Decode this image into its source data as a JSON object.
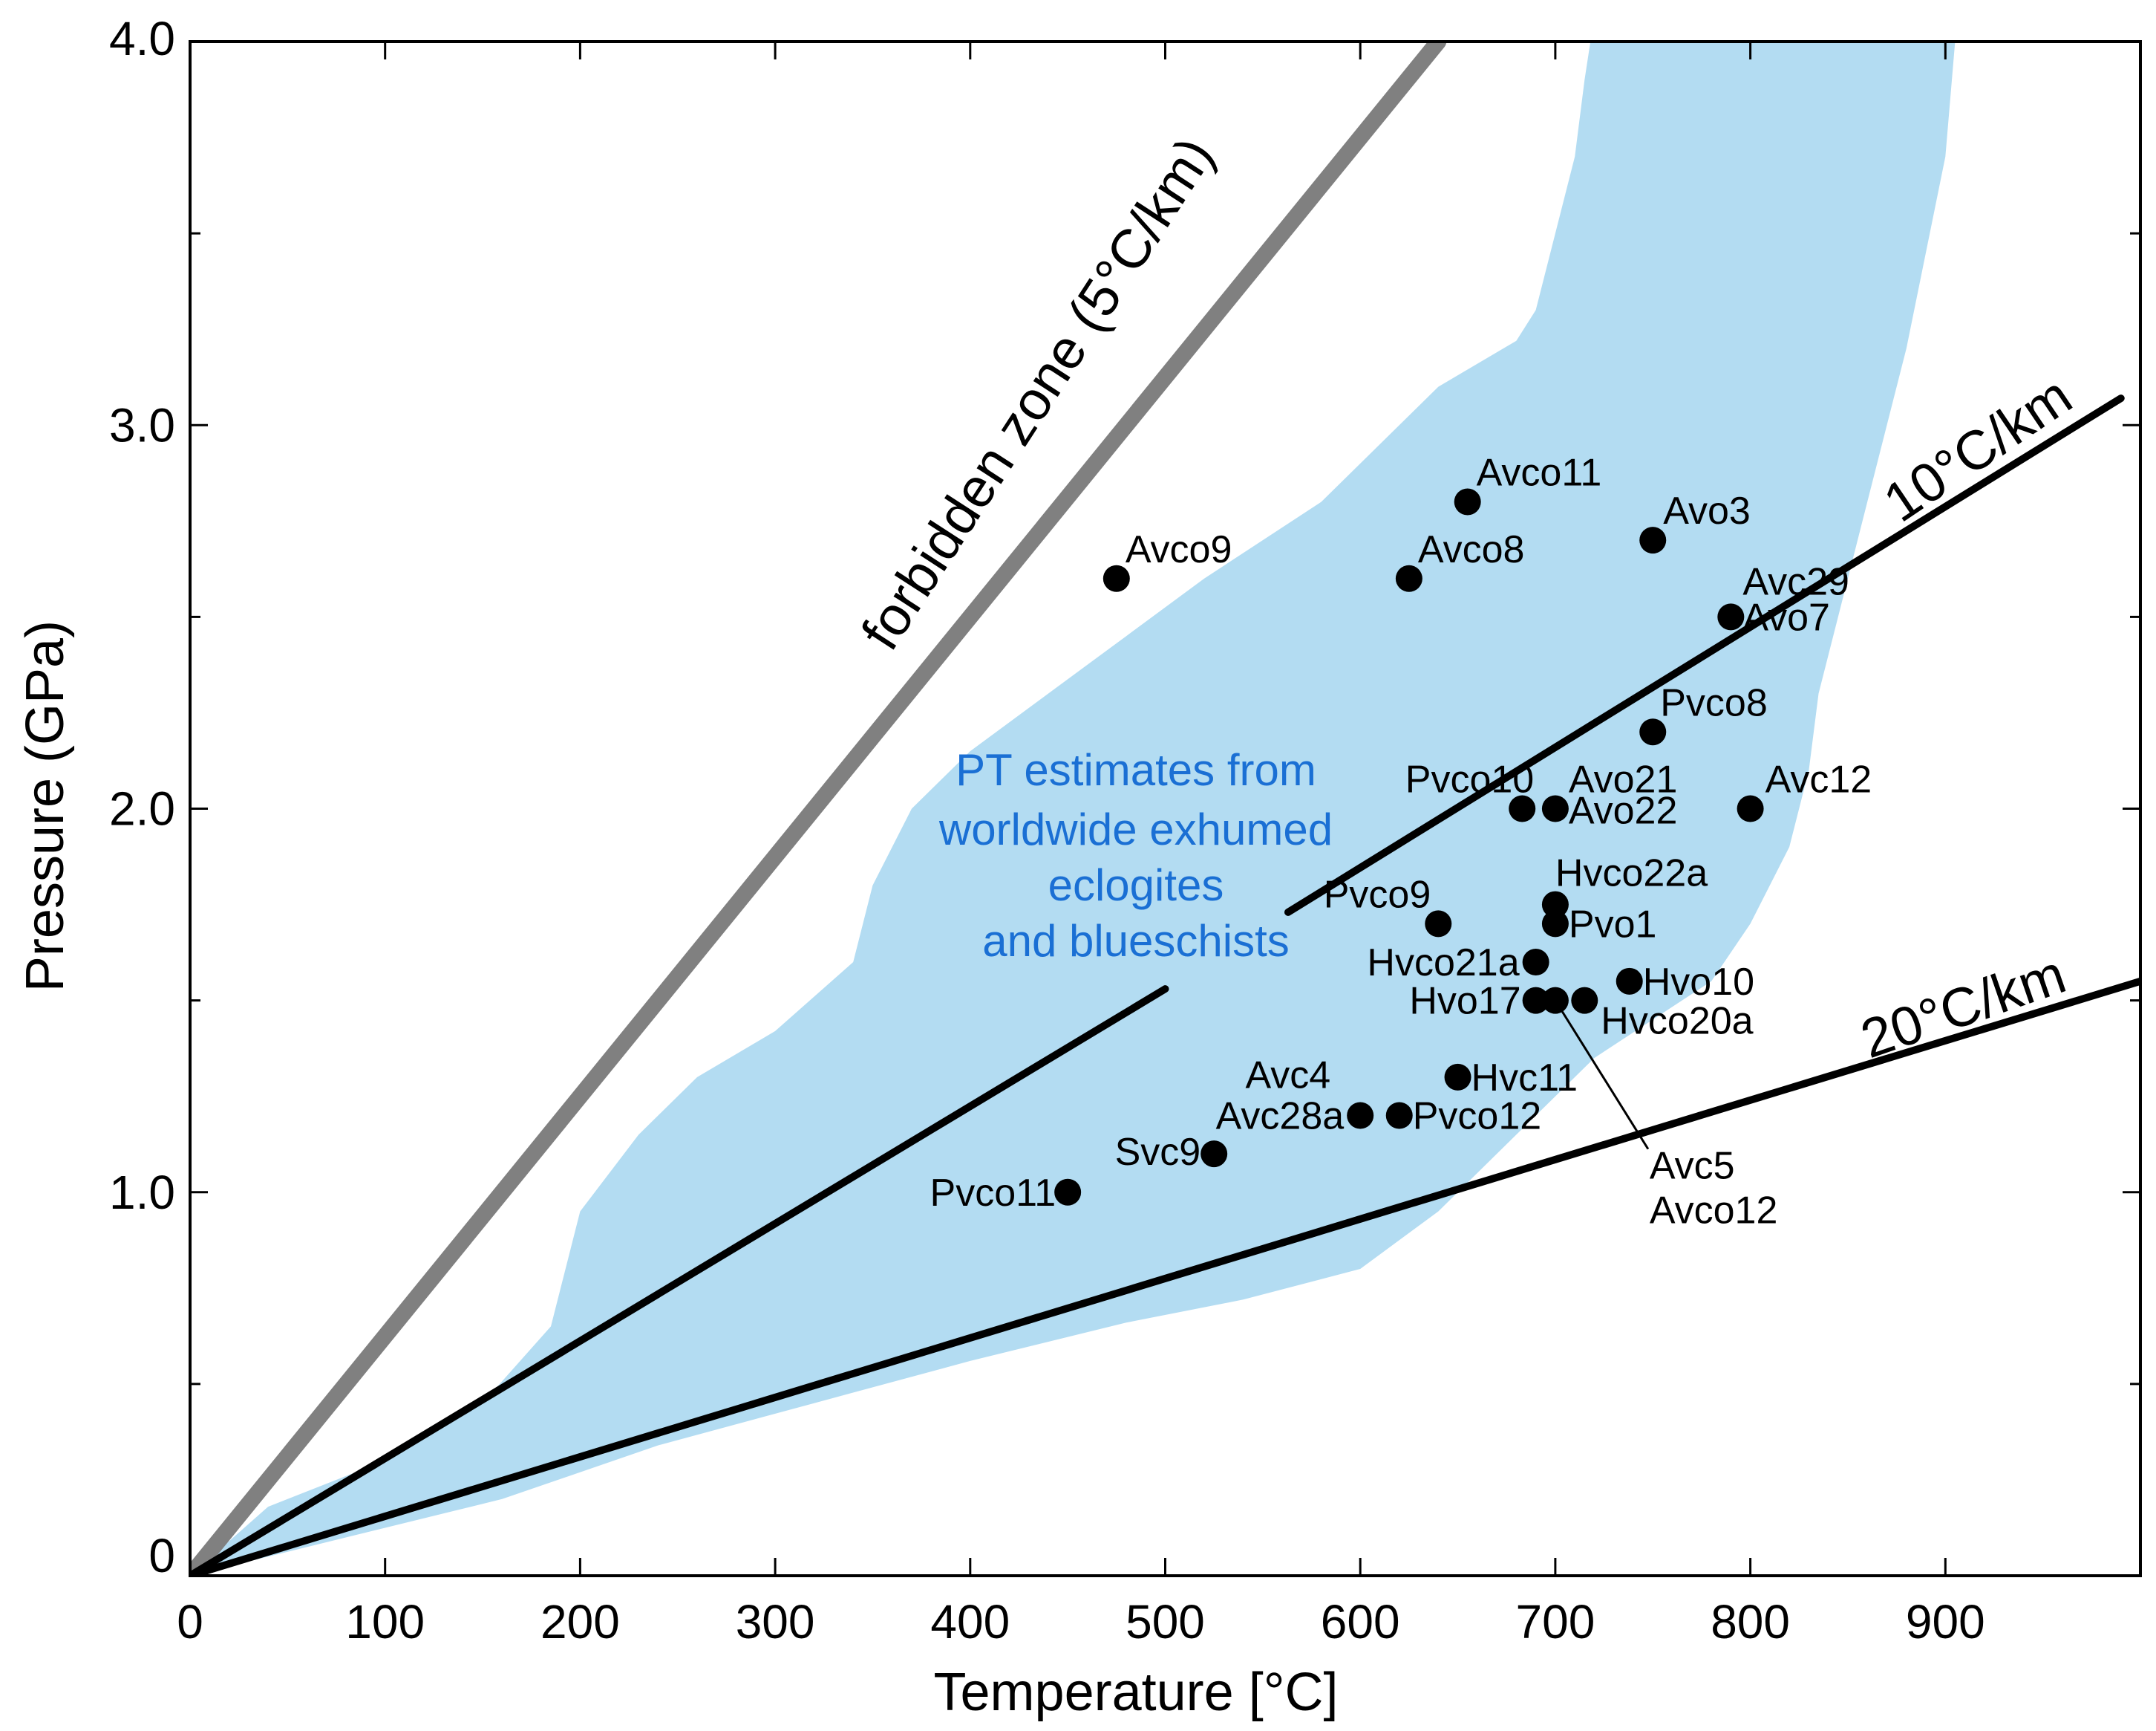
{
  "chart_data": {
    "type": "scatter",
    "xlabel": "Temperature [°C]",
    "ylabel": "Pressure (GPa)",
    "xlim": [
      0,
      1000
    ],
    "ylim": [
      0,
      4.0
    ],
    "xticks": [
      0,
      100,
      200,
      300,
      400,
      500,
      600,
      700,
      800,
      900
    ],
    "xtick_labels": [
      "0",
      "100",
      "200",
      "300",
      "400",
      "500",
      "600",
      "700",
      "800",
      "900"
    ],
    "yticks": [
      0,
      1.0,
      2.0,
      3.0,
      4.0
    ],
    "ytick_labels": [
      "0",
      "1.0",
      "2.0",
      "3.0",
      "4.0"
    ],
    "y_minor_ticks": [
      0.5,
      1.5,
      2.5,
      3.5
    ],
    "grid": false,
    "region": {
      "label_lines": [
        "PT estimates from",
        "worldwide exhumed",
        "eclogites",
        "and blueschists"
      ],
      "color": "#b3dcf2",
      "label_color": "#1a6fd4",
      "outline": [
        [
          0,
          0
        ],
        [
          40,
          0.18
        ],
        [
          100,
          0.3
        ],
        [
          150,
          0.45
        ],
        [
          185,
          0.65
        ],
        [
          200,
          0.95
        ],
        [
          230,
          1.15
        ],
        [
          260,
          1.3
        ],
        [
          300,
          1.42
        ],
        [
          340,
          1.6
        ],
        [
          350,
          1.8
        ],
        [
          370,
          2.0
        ],
        [
          400,
          2.15
        ],
        [
          440,
          2.3
        ],
        [
          480,
          2.45
        ],
        [
          520,
          2.6
        ],
        [
          580,
          2.8
        ],
        [
          640,
          3.1
        ],
        [
          680,
          3.22
        ],
        [
          690,
          3.3
        ],
        [
          700,
          3.5
        ],
        [
          710,
          3.7
        ],
        [
          715,
          3.9
        ],
        [
          718,
          4.0
        ],
        [
          905,
          4.0
        ],
        [
          900,
          3.7
        ],
        [
          880,
          3.2
        ],
        [
          860,
          2.8
        ],
        [
          845,
          2.5
        ],
        [
          835,
          2.3
        ],
        [
          830,
          2.1
        ],
        [
          820,
          1.9
        ],
        [
          800,
          1.7
        ],
        [
          780,
          1.55
        ],
        [
          750,
          1.45
        ],
        [
          720,
          1.35
        ],
        [
          680,
          1.15
        ],
        [
          640,
          0.95
        ],
        [
          600,
          0.8
        ],
        [
          540,
          0.72
        ],
        [
          480,
          0.66
        ],
        [
          400,
          0.56
        ],
        [
          320,
          0.45
        ],
        [
          240,
          0.34
        ],
        [
          160,
          0.2
        ],
        [
          80,
          0.1
        ],
        [
          0,
          0
        ]
      ]
    },
    "series": [
      {
        "name": "forbidden zone (5°C/km)",
        "color": "#808080",
        "points": [
          [
            0,
            0
          ],
          [
            640,
            4.0
          ]
        ]
      },
      {
        "name": "10°C/km",
        "color": "#000000",
        "segments": [
          [
            [
              0,
              0
            ],
            [
              500,
              1.53
            ]
          ],
          [
            [
              563,
              1.73
            ],
            [
              990,
              3.07
            ]
          ]
        ]
      },
      {
        "name": "20°C/km",
        "color": "#000000",
        "points": [
          [
            0,
            0
          ],
          [
            1000,
            1.55
          ]
        ]
      }
    ],
    "gradient_labels": [
      "forbidden zone (5°C/km)",
      "10°C/km",
      "20°C/km"
    ],
    "points": [
      {
        "label": "Avco11",
        "x": 655,
        "y": 2.8
      },
      {
        "label": "Avco9",
        "x": 475,
        "y": 2.6
      },
      {
        "label": "Avco8",
        "x": 625,
        "y": 2.6
      },
      {
        "label": "Avo3",
        "x": 750,
        "y": 2.7
      },
      {
        "label": "Avc29",
        "x": 790,
        "y": 2.5
      },
      {
        "label": "Avo7",
        "x": 790,
        "y": 2.5
      },
      {
        "label": "Pvco8",
        "x": 750,
        "y": 2.2
      },
      {
        "label": "Pvco10",
        "x": 683,
        "y": 2.0
      },
      {
        "label": "Avo21",
        "x": 700,
        "y": 2.0
      },
      {
        "label": "Avo22",
        "x": 700,
        "y": 2.0
      },
      {
        "label": "Avc12",
        "x": 800,
        "y": 2.0
      },
      {
        "label": "Pvco9",
        "x": 640,
        "y": 1.7
      },
      {
        "label": "Hvco22a",
        "x": 700,
        "y": 1.75
      },
      {
        "label": "Pvo1",
        "x": 700,
        "y": 1.7
      },
      {
        "label": "Hvco21a",
        "x": 690,
        "y": 1.6
      },
      {
        "label": "Hvo10",
        "x": 738,
        "y": 1.55
      },
      {
        "label": "Hvo17",
        "x": 690,
        "y": 1.5
      },
      {
        "label": "Avc5",
        "x": 700,
        "y": 1.5
      },
      {
        "label": "Avco12",
        "x": 700,
        "y": 1.5
      },
      {
        "label": "Hvco20a",
        "x": 715,
        "y": 1.5
      },
      {
        "label": "Hvc11",
        "x": 650,
        "y": 1.3
      },
      {
        "label": "Avc4",
        "x": 600,
        "y": 1.2
      },
      {
        "label": "Avc28a",
        "x": 600,
        "y": 1.2
      },
      {
        "label": "Pvco12",
        "x": 620,
        "y": 1.2
      },
      {
        "label": "Svc9",
        "x": 525,
        "y": 1.1
      },
      {
        "label": "Pvco11",
        "x": 450,
        "y": 1.0
      }
    ]
  }
}
